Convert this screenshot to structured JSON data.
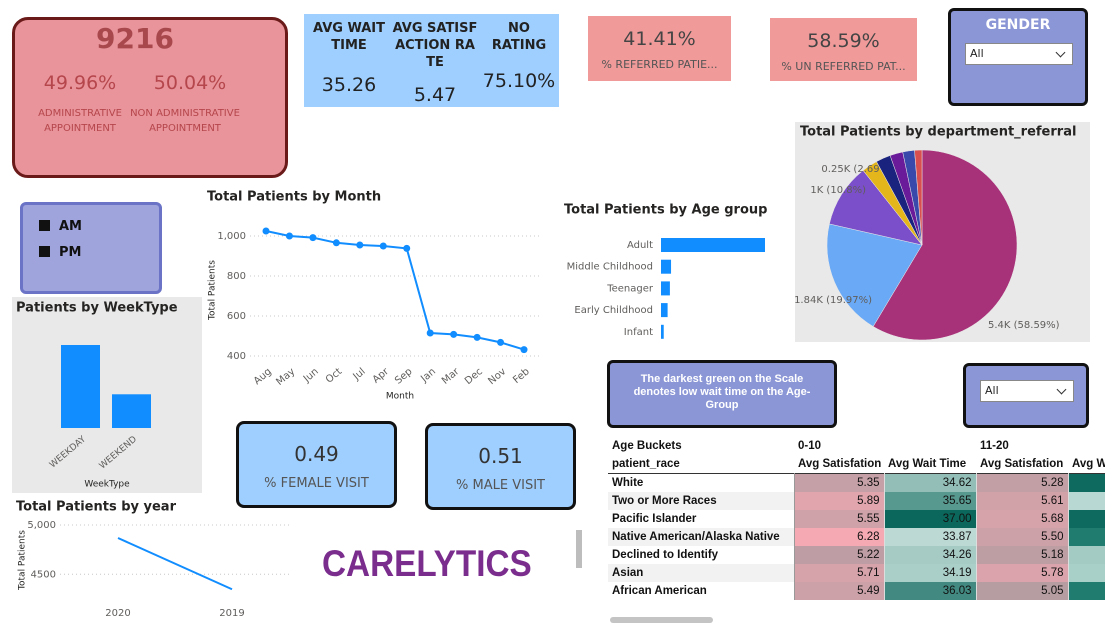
{
  "appointment_card": {
    "total": "9216",
    "admin_pct": "49.96%",
    "admin_label": "ADMINISTRATIVE APPOINTMENT",
    "non_admin_pct": "50.04%",
    "non_admin_label": "NON ADMINISTRATIVE APPOINTMENT"
  },
  "kpi_card": {
    "columns": [
      {
        "label": "AVG WAIT TIME",
        "value": "35.26"
      },
      {
        "label": "AVG SATISFACTION RATE",
        "value": "5.47"
      },
      {
        "label": "NO RATING",
        "value": "75.10%"
      }
    ]
  },
  "referred_card": {
    "value": "41.41%",
    "label": "% REFERRED PATIE..."
  },
  "unreferred_card": {
    "value": "58.59%",
    "label": "% UN REFERRED PAT..."
  },
  "gender_slicer": {
    "title": "GENDER",
    "selected": "All"
  },
  "ampm_legend": [
    "AM",
    "PM"
  ],
  "female_card": {
    "value": "0.49",
    "label": "% FEMALE VISIT"
  },
  "male_card": {
    "value": "0.51",
    "label": "% MALE VISIT"
  },
  "logo": "CARELYTICS",
  "note": "The darkest green on the Scale denotes low wait time on the Age-Group",
  "age_slicer": {
    "selected": "All"
  },
  "matrix": {
    "header_row1": [
      "Age Buckets",
      "0-10",
      "11-20"
    ],
    "header_row2": [
      "patient_race",
      "Avg Satisfation",
      "Avg Wait Time",
      "Avg Satisfation",
      "Avg W"
    ],
    "rows": [
      [
        "White",
        "5.35",
        "34.62",
        "5.28"
      ],
      [
        "Two or More Races",
        "5.89",
        "35.65",
        "5.61"
      ],
      [
        "Pacific Islander",
        "5.55",
        "37.00",
        "5.68"
      ],
      [
        "Native American/Alaska Native",
        "6.28",
        "33.87",
        "5.50"
      ],
      [
        "Declined to Identify",
        "5.22",
        "34.26",
        "5.18"
      ],
      [
        "Asian",
        "5.71",
        "34.19",
        "5.78"
      ],
      [
        "African American",
        "5.49",
        "36.03",
        "5.05"
      ]
    ]
  },
  "chart_data": [
    {
      "type": "line",
      "title": "Total Patients by Month",
      "x_label": "Month",
      "y_label": "Total Patients",
      "categories": [
        "Aug",
        "May",
        "Jun",
        "Oct",
        "Jul",
        "Apr",
        "Sep",
        "Jan",
        "Mar",
        "Dec",
        "Nov",
        "Feb"
      ],
      "values": [
        1025,
        1000,
        992,
        966,
        955,
        950,
        938,
        515,
        508,
        493,
        468,
        432
      ],
      "color": "#118dff",
      "ylim": [
        400,
        1040
      ],
      "yticks": [
        400,
        600,
        800,
        {
          "value": 1000,
          "label": "1,000"
        }
      ],
      "grid": true
    },
    {
      "type": "hbar",
      "title": "Total Patients by Age group",
      "categories": [
        "Adult",
        "Middle Childhood",
        "Teenager",
        "Early Childhood",
        "Infant"
      ],
      "values": [
        7250,
        700,
        620,
        460,
        190
      ],
      "color": "#118dff"
    },
    {
      "type": "pie",
      "title": "Total Patients by department_referral",
      "values": [
        58.59,
        19.97,
        10.8,
        2.69,
        2.5,
        2.2,
        2.0,
        1.25
      ],
      "value_labels": [
        "5.4K (58.59%)",
        "1.84K (19.97%)",
        "1K (10.8%)",
        "0.25K (2.69%)",
        null,
        null,
        null,
        null
      ],
      "colors": [
        "#a83279",
        "#6aa9f5",
        "#7b4fc9",
        "#e5b51c",
        "#1a237e",
        "#6a1b9a",
        "#3949ab",
        "#d94f4f"
      ]
    },
    {
      "type": "bar",
      "title": "Patients by WeekType",
      "x_label": "WeekType",
      "categories": [
        "WEEKDAY",
        "WEEKEND"
      ],
      "values": [
        6550,
        2660
      ],
      "color": "#118dff"
    },
    {
      "type": "line",
      "title": "Total Patients by year",
      "y_label": "Total Patients",
      "categories": [
        "2020",
        "2019"
      ],
      "values": [
        4868,
        4348
      ],
      "color": "#118dff",
      "ylim": [
        4330,
        5000
      ],
      "yticks": [
        4500,
        {
          "value": 5000,
          "label": "5,000"
        }
      ],
      "grid": true
    }
  ]
}
